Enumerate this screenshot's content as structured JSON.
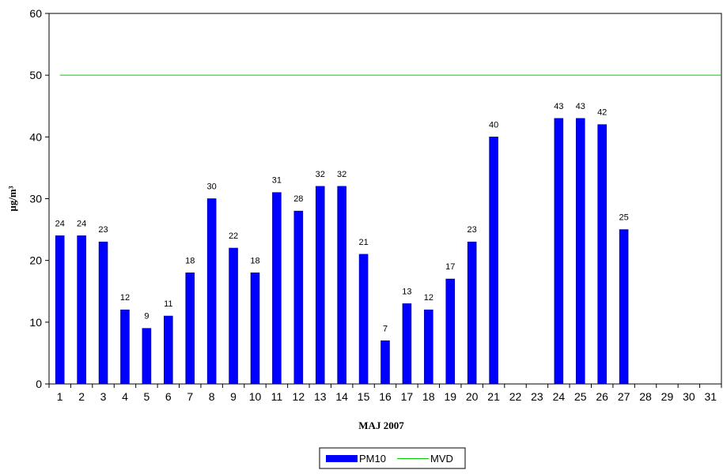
{
  "chart_data": {
    "type": "bar",
    "xlabel": "MAJ 2007",
    "ylabel": "µg/m³",
    "ylim": [
      0,
      60
    ],
    "yticks": [
      0,
      10,
      20,
      30,
      40,
      50,
      60
    ],
    "categories": [
      "1",
      "2",
      "3",
      "4",
      "5",
      "6",
      "7",
      "8",
      "9",
      "10",
      "11",
      "12",
      "13",
      "14",
      "15",
      "16",
      "17",
      "18",
      "19",
      "20",
      "21",
      "22",
      "23",
      "24",
      "25",
      "26",
      "27",
      "28",
      "29",
      "30",
      "31"
    ],
    "series": [
      {
        "name": "PM10",
        "type": "bar",
        "color": "#0000ff",
        "values": [
          24,
          24,
          23,
          12,
          9,
          11,
          18,
          30,
          22,
          18,
          31,
          28,
          32,
          32,
          21,
          7,
          13,
          12,
          17,
          23,
          40,
          null,
          null,
          43,
          43,
          42,
          25,
          null,
          null,
          null,
          null
        ]
      },
      {
        "name": "MVD",
        "type": "line",
        "color": "#00cc00",
        "value": 50
      }
    ],
    "grid": false,
    "legend": "bottom-center"
  }
}
